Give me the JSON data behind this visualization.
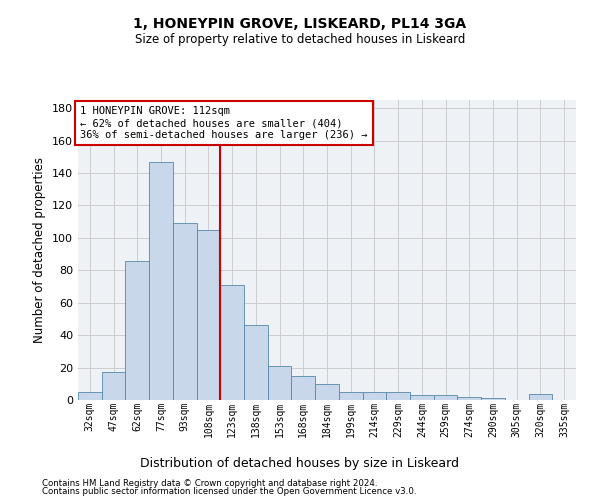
{
  "title1": "1, HONEYPIN GROVE, LISKEARD, PL14 3GA",
  "title2": "Size of property relative to detached houses in Liskeard",
  "xlabel": "Distribution of detached houses by size in Liskeard",
  "ylabel": "Number of detached properties",
  "categories": [
    "32sqm",
    "47sqm",
    "62sqm",
    "77sqm",
    "93sqm",
    "108sqm",
    "123sqm",
    "138sqm",
    "153sqm",
    "168sqm",
    "184sqm",
    "199sqm",
    "214sqm",
    "229sqm",
    "244sqm",
    "259sqm",
    "274sqm",
    "290sqm",
    "305sqm",
    "320sqm",
    "335sqm"
  ],
  "values": [
    5,
    17,
    86,
    147,
    109,
    105,
    71,
    46,
    21,
    15,
    10,
    5,
    5,
    5,
    3,
    3,
    2,
    1,
    0,
    4,
    0
  ],
  "bar_color": "#c8d8ea",
  "bar_edge_color": "#5588aa",
  "property_label": "1 HONEYPIN GROVE: 112sqm",
  "annotation_line1": "← 62% of detached houses are smaller (404)",
  "annotation_line2": "36% of semi-detached houses are larger (236) →",
  "vline_color": "#cc0000",
  "annotation_box_color": "#ffffff",
  "annotation_box_edge": "#cc0000",
  "footnote1": "Contains HM Land Registry data © Crown copyright and database right 2024.",
  "footnote2": "Contains public sector information licensed under the Open Government Licence v3.0.",
  "ylim": [
    0,
    185
  ],
  "yticks": [
    0,
    20,
    40,
    60,
    80,
    100,
    120,
    140,
    160,
    180
  ],
  "grid_color": "#cccccc",
  "bg_color": "#eef2f7",
  "vline_position": 5.5,
  "figwidth": 6.0,
  "figheight": 5.0,
  "dpi": 100
}
